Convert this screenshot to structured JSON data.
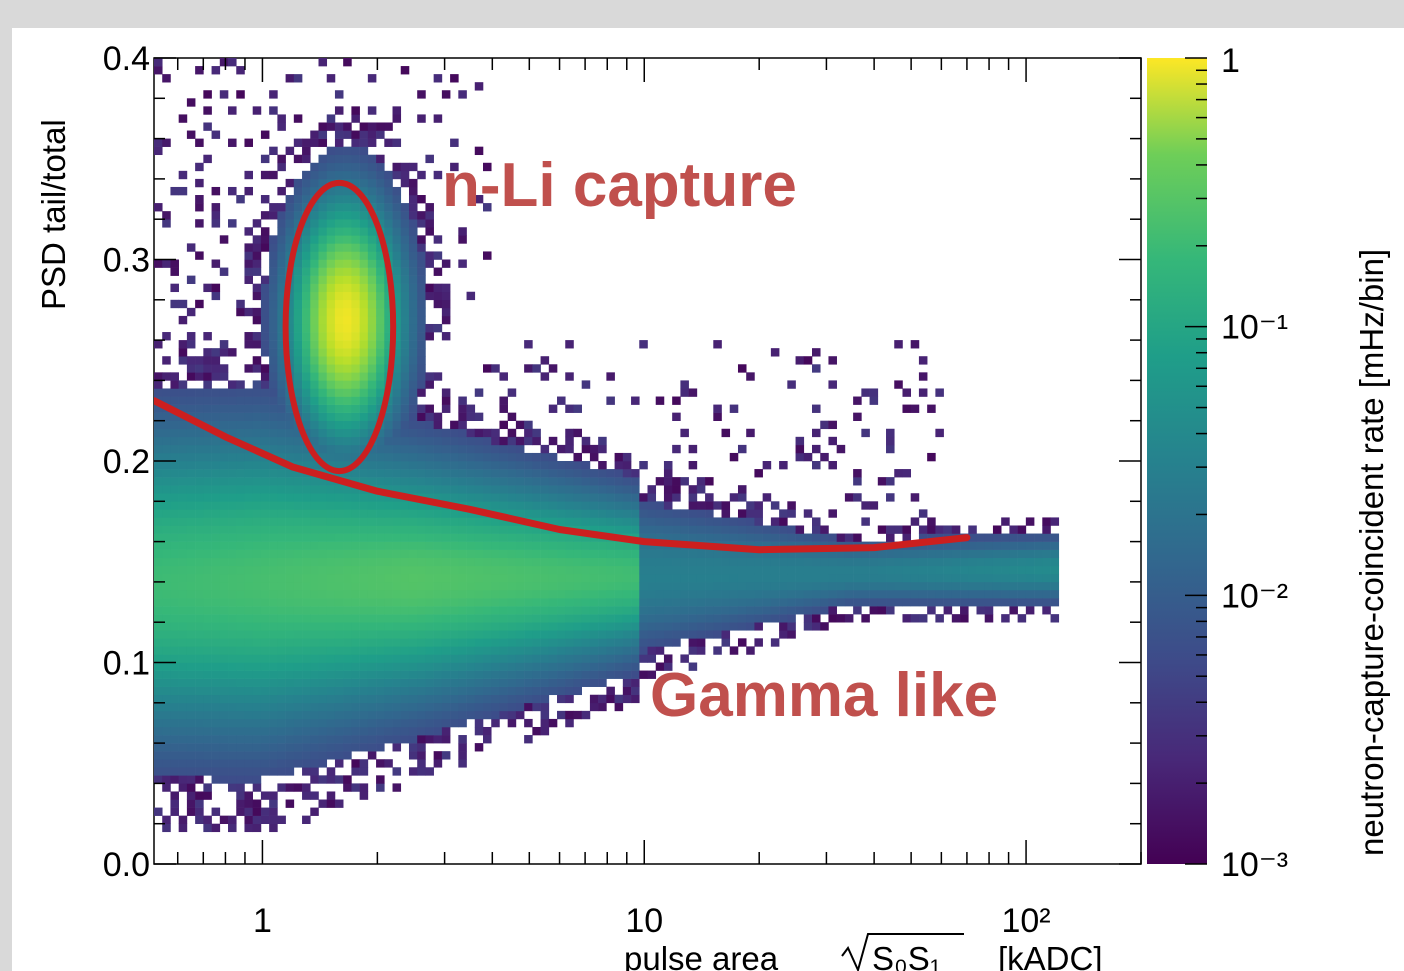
{
  "chart_data": {
    "type": "heatmap",
    "title": "",
    "xlabel": "pulse area",
    "xlabel_formula": "S₀S₁",
    "xlabel_unit": "[kADC]",
    "ylabel": "PSD tail/total",
    "colorbar_label": "neutron-capture-coincident rate [mHz/bin]",
    "x_scale": "log",
    "xlim": [
      0.52,
      200
    ],
    "ylim": [
      0.0,
      0.4
    ],
    "x_tick_labels": [
      "1",
      "10",
      "10²"
    ],
    "x_tick_values": [
      1,
      10,
      100
    ],
    "y_tick_labels": [
      "0.0",
      "0.1",
      "0.2",
      "0.3",
      "0.4"
    ],
    "y_tick_values": [
      0.0,
      0.1,
      0.2,
      0.3,
      0.4
    ],
    "colorbar_scale": "log",
    "colorbar_range": [
      0.001,
      1
    ],
    "colorbar_tick_labels": [
      "1",
      "10⁻¹",
      "10⁻²",
      "10⁻³"
    ],
    "colorbar_tick_values": [
      1,
      0.1,
      0.01,
      0.001
    ],
    "colormap": "viridis",
    "regions": [
      {
        "label": "n-Li capture",
        "x_center": 1.65,
        "y_center": 0.27,
        "x_min": 1.15,
        "x_max": 2.2,
        "y_min": 0.195,
        "y_max": 0.338
      },
      {
        "label": "Gamma like",
        "x_range": [
          0.52,
          120
        ],
        "y_range": [
          0.03,
          0.2
        ]
      }
    ],
    "cut_curve": {
      "color": "#cc1f1f",
      "x": [
        0.52,
        0.8,
        1.2,
        2.0,
        3.5,
        6.0,
        10,
        20,
        40,
        70
      ],
      "y": [
        0.23,
        0.212,
        0.197,
        0.185,
        0.176,
        0.166,
        0.16,
        0.156,
        0.157,
        0.162
      ]
    }
  },
  "annotations": {
    "nli": "n-Li capture",
    "gamma": "Gamma like"
  }
}
